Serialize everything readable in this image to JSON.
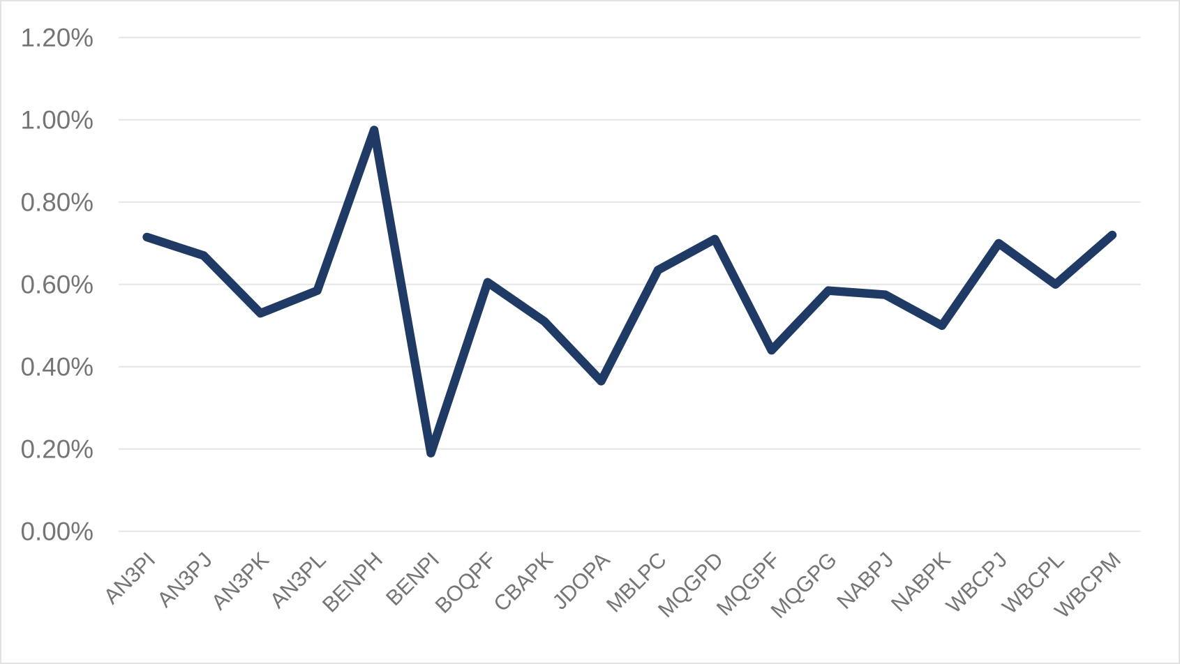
{
  "chart_data": {
    "type": "line",
    "title": "",
    "xlabel": "",
    "ylabel": "",
    "categories": [
      "AN3PI",
      "AN3PJ",
      "AN3PK",
      "AN3PL",
      "BENPH",
      "BENPI",
      "BOQPF",
      "CBAPK",
      "JDOPA",
      "MBLPC",
      "MQGPD",
      "MQGPF",
      "MQGPG",
      "NABPJ",
      "NABPK",
      "WBCPJ",
      "WBCPL",
      "WBCPM"
    ],
    "series": [
      {
        "name": "",
        "values_percent": [
          0.715,
          0.67,
          0.53,
          0.585,
          0.975,
          0.19,
          0.605,
          0.51,
          0.365,
          0.635,
          0.71,
          0.44,
          0.585,
          0.575,
          0.5,
          0.7,
          0.6,
          0.72
        ]
      }
    ],
    "ylim_percent": [
      0,
      1.2
    ],
    "ytick_step_percent": 0.2,
    "ytick_labels": [
      "0.00%",
      "0.20%",
      "0.40%",
      "0.60%",
      "0.80%",
      "1.00%",
      "1.20%"
    ],
    "grid": true,
    "legend_position": "none",
    "colors": {
      "line": "#1f3a64",
      "gridline": "#e6e6e6",
      "axis_label": "#757575",
      "background": "#ffffff",
      "canvas_border": "#e2e2e2"
    }
  }
}
